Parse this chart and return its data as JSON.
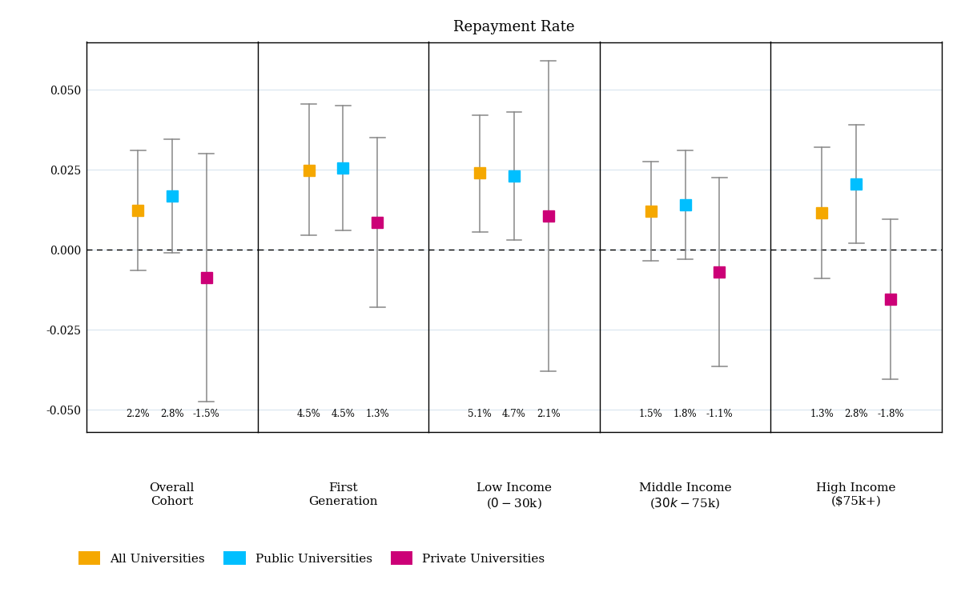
{
  "title": "Repayment Rate",
  "groups": [
    "Overall\nCohort",
    "First\nGeneration",
    "Low Income\n($0-$30k)",
    "Middle Income\n($30k-$75k)",
    "High Income\n($75k+)"
  ],
  "series": {
    "All Universities": {
      "color": "#F5A800",
      "points": [
        0.0122,
        0.0248,
        0.024,
        0.012,
        0.0115
      ],
      "ci_upper": [
        0.031,
        0.0455,
        0.042,
        0.0275,
        0.032
      ],
      "ci_lower": [
        -0.0065,
        0.0045,
        0.0055,
        -0.0035,
        -0.009
      ]
    },
    "Public Universities": {
      "color": "#00BFFF",
      "points": [
        0.0168,
        0.0255,
        0.023,
        0.014,
        0.0205
      ],
      "ci_upper": [
        0.0345,
        0.045,
        0.043,
        0.031,
        0.039
      ],
      "ci_lower": [
        -0.001,
        0.006,
        0.003,
        -0.003,
        0.002
      ]
    },
    "Private Universities": {
      "color": "#CC0077",
      "points": [
        -0.0088,
        0.0085,
        0.0105,
        -0.007,
        -0.0155
      ],
      "ci_upper": [
        0.03,
        0.035,
        0.059,
        0.0225,
        0.0095
      ],
      "ci_lower": [
        -0.0475,
        -0.018,
        -0.038,
        -0.0365,
        -0.0405
      ]
    }
  },
  "percentages": [
    [
      "2.2%",
      "2.8%",
      "-1.5%"
    ],
    [
      "4.5%",
      "4.5%",
      "1.3%"
    ],
    [
      "5.1%",
      "4.7%",
      "2.1%"
    ],
    [
      "1.5%",
      "1.8%",
      "-1.1%"
    ],
    [
      "1.3%",
      "2.8%",
      "-1.8%"
    ]
  ],
  "ylim": [
    -0.057,
    0.065
  ],
  "yticks": [
    -0.05,
    -0.025,
    0.0,
    0.025,
    0.05
  ],
  "ytick_labels": [
    "-0.050",
    "-0.025",
    "0.000",
    "0.025",
    "0.050"
  ],
  "background_color": "#FFFFFF",
  "panel_background": "#FFFFFF",
  "grid_color": "#D8E4EE",
  "offsets": [
    -0.18,
    0.0,
    0.18
  ],
  "series_names": [
    "All Universities",
    "Public Universities",
    "Private Universities"
  ]
}
